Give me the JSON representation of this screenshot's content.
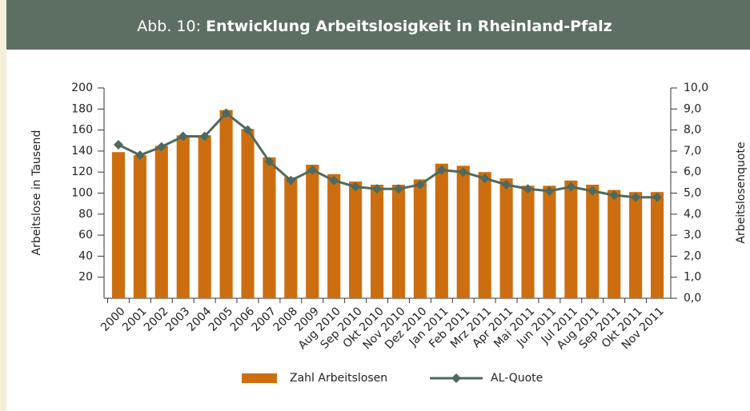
{
  "chart_data": {
    "type": "bar_line",
    "title_number": "Abb. 10:",
    "title": "Entwicklung Arbeitslosigkeit in Rheinland-Pfalz",
    "ylabel": "Arbeitslose in Tausend",
    "y2label": "Arbeitslosenquote",
    "categories": [
      "2000",
      "2001",
      "2002",
      "2003",
      "2004",
      "2005",
      "2006",
      "2007",
      "2008",
      "2009",
      "Aug 2010",
      "Sep 2010",
      "Okt 2010",
      "Nov 2010",
      "Dez 2010",
      "Jan 2011",
      "Feb 2011",
      "Mrz 2011",
      "Apr 2011",
      "Mai 2011",
      "Jun 2011",
      "Jul 2011",
      "Aug 2011",
      "Sep 2011",
      "Okt 2011",
      "Nov 2011"
    ],
    "series": [
      {
        "name": "Zahl Arbeitslosen",
        "type": "bar",
        "color": "#cc6e10",
        "values": [
          139,
          136,
          145,
          155,
          155,
          179,
          161,
          134,
          115,
          127,
          118,
          111,
          108,
          108,
          113,
          128,
          126,
          120,
          114,
          107,
          107,
          112,
          108,
          103,
          101,
          101
        ]
      },
      {
        "name": "AL-Quote",
        "type": "line",
        "axis": "y2",
        "color": "#4f6a5d",
        "values": [
          7.3,
          6.8,
          7.2,
          7.7,
          7.7,
          8.8,
          8.0,
          6.5,
          5.6,
          6.1,
          5.6,
          5.3,
          5.2,
          5.2,
          5.4,
          6.1,
          6.0,
          5.7,
          5.4,
          5.2,
          5.1,
          5.3,
          5.1,
          4.9,
          4.8,
          4.8
        ]
      }
    ],
    "ylim": [
      0,
      200
    ],
    "yticks": [
      20,
      40,
      60,
      80,
      100,
      120,
      140,
      160,
      180,
      200
    ],
    "y2lim": [
      0,
      10
    ],
    "y2ticks": [
      {
        "value": 0,
        "label": "0,0"
      },
      {
        "value": 1,
        "label": "1,0"
      },
      {
        "value": 2,
        "label": "2,0"
      },
      {
        "value": 3,
        "label": "3,0"
      },
      {
        "value": 4,
        "label": "4,0"
      },
      {
        "value": 5,
        "label": "5,0"
      },
      {
        "value": 6,
        "label": "6,0"
      },
      {
        "value": 7,
        "label": "7,0"
      },
      {
        "value": 8,
        "label": "8,0"
      },
      {
        "value": 9,
        "label": "9,0"
      },
      {
        "value": 10,
        "label": "10,0"
      }
    ],
    "legend": "bottom"
  }
}
